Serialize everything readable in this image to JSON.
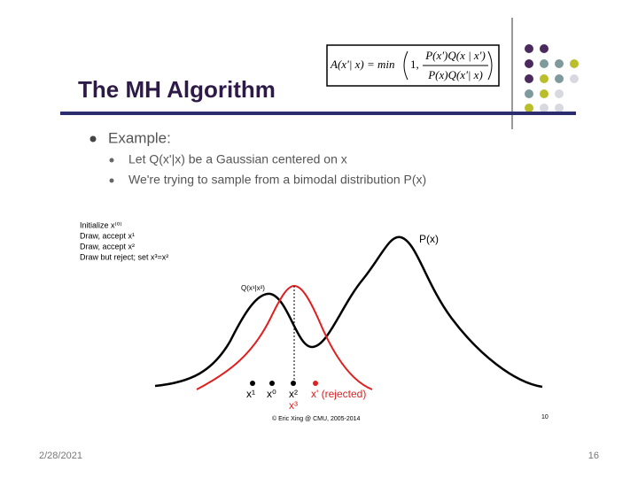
{
  "slide": {
    "title": "The MH Algorithm",
    "formula": {
      "lhs": "A(x'| x) = min",
      "one": "1,",
      "numerator": "P(x')Q(x | x')",
      "denominator": "P(x)Q(x'| x)"
    },
    "bullets": {
      "heading": "Example:",
      "items": [
        "Let Q(x'|x) be a Gaussian centered on x",
        "We're trying to sample from a bimodal distribution P(x)"
      ]
    },
    "figure": {
      "steps": [
        "Initialize x⁽⁰⁾",
        "Draw, accept x¹",
        "Draw, accept x²",
        "Draw but reject; set x³=x²"
      ],
      "target_label": "P(x)",
      "proposal_label": "Q(x¹|x²)",
      "points": [
        "x¹",
        "x⁰",
        "x²",
        "x' (rejected)"
      ],
      "repeat_label": "x³",
      "credit": "© Eric Xing @ CMU, 2005-2014",
      "inner_page": "10"
    },
    "footer": {
      "date": "2/28/2021",
      "page": "16"
    }
  }
}
